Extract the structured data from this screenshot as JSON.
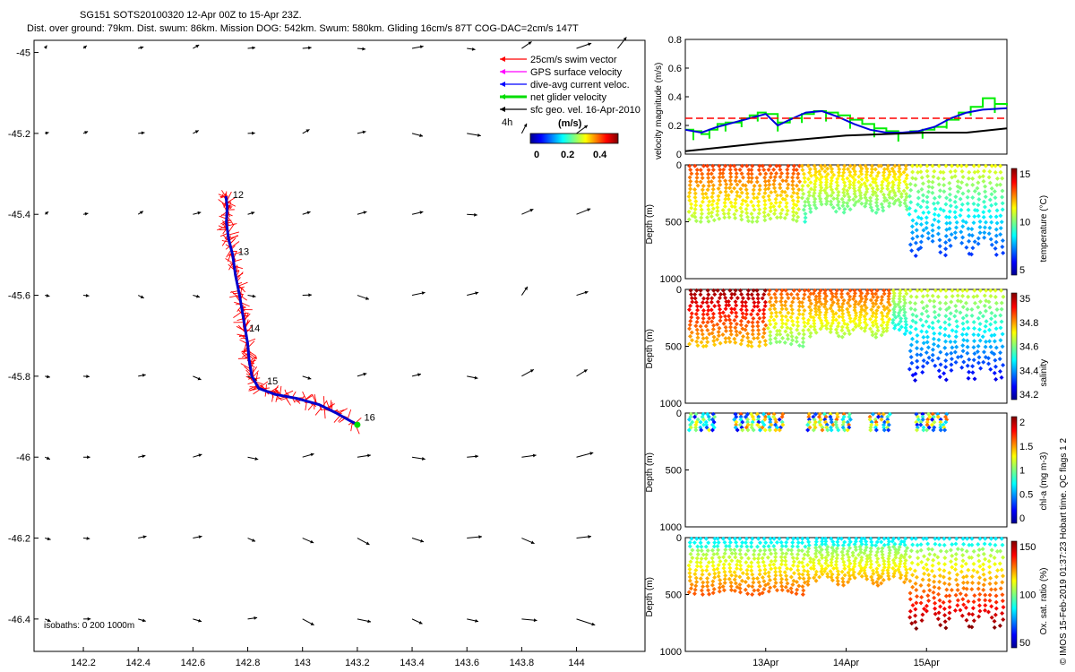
{
  "title": {
    "line1": "SG151 SOTS20100320 12-Apr 00Z to 15-Apr 23Z.",
    "line2": "Dist. over ground: 79km. Dist. swum: 86km. Mission DOG: 542km. Swum: 580km. Gliding 16cm/s 87T COG-DAC=2cm/s 147T"
  },
  "map": {
    "xticks": [
      "142.2",
      "142.4",
      "142.6",
      "142.8",
      "143",
      "143.2",
      "143.4",
      "143.6",
      "143.8",
      "144"
    ],
    "yticks": [
      "-45",
      "-45.2",
      "-45.4",
      "-45.6",
      "-45.8",
      "-46",
      "-46.2",
      "-46.4"
    ],
    "xlim": [
      142.02,
      144.25
    ],
    "ylim": [
      -46.48,
      -44.97
    ],
    "isobaths_label": "isobaths: 0   200  1000m",
    "day_labels": [
      {
        "text": "12",
        "lon": 142.745,
        "lat": -45.36
      },
      {
        "text": "13",
        "lon": 142.765,
        "lat": -45.5
      },
      {
        "text": "14",
        "lon": 142.805,
        "lat": -45.69
      },
      {
        "text": "15",
        "lon": 142.87,
        "lat": -45.82
      },
      {
        "text": "16",
        "lon": 143.225,
        "lat": -45.91
      }
    ],
    "track": [
      [
        142.72,
        -45.355
      ],
      [
        142.725,
        -45.38
      ],
      [
        142.722,
        -45.42
      ],
      [
        142.73,
        -45.46
      ],
      [
        142.745,
        -45.5
      ],
      [
        142.755,
        -45.55
      ],
      [
        142.77,
        -45.6
      ],
      [
        142.78,
        -45.64
      ],
      [
        142.79,
        -45.68
      ],
      [
        142.8,
        -45.72
      ],
      [
        142.805,
        -45.76
      ],
      [
        142.815,
        -45.8
      ],
      [
        142.84,
        -45.83
      ],
      [
        142.9,
        -45.845
      ],
      [
        142.98,
        -45.855
      ],
      [
        143.06,
        -45.87
      ],
      [
        143.12,
        -45.89
      ],
      [
        143.2,
        -45.92
      ]
    ],
    "legend": {
      "items": [
        {
          "label": "25cm/s swim vector",
          "color": "#ff0000"
        },
        {
          "label": "GPS surface velocity",
          "color": "#ff00ff"
        },
        {
          "label": "dive-avg current veloc.",
          "color": "#0000ff"
        },
        {
          "label": "net glider velocity",
          "color": "#00dd00"
        },
        {
          "label": "sfc geo. vel. 16-Apr-2010",
          "color": "#000000"
        }
      ],
      "prefix": "4h"
    },
    "colorbar": {
      "label": "(m/s)",
      "ticks": [
        "0",
        "0.2",
        "0.4"
      ]
    }
  },
  "velocity_panel": {
    "ylabel": "velocity magnitude (m/s)",
    "yticks": [
      "0",
      "0.2",
      "0.4",
      "0.6",
      "0.8"
    ],
    "ylim": [
      0,
      0.8
    ],
    "xlim": [
      0,
      4
    ],
    "reference_level": 0.25,
    "colors": {
      "net": "#00ee00",
      "current": "#0000dd",
      "reference": "#ff0000",
      "surface": "#000000"
    },
    "net_glider": [
      [
        0.0,
        0.17
      ],
      [
        0.1,
        0.16
      ],
      [
        0.2,
        0.14
      ],
      [
        0.3,
        0.17
      ],
      [
        0.4,
        0.21
      ],
      [
        0.5,
        0.22
      ],
      [
        0.6,
        0.22
      ],
      [
        0.7,
        0.25
      ],
      [
        0.8,
        0.27
      ],
      [
        0.9,
        0.29
      ],
      [
        1.0,
        0.28
      ],
      [
        1.15,
        0.22
      ],
      [
        1.3,
        0.25
      ],
      [
        1.45,
        0.28
      ],
      [
        1.6,
        0.3
      ],
      [
        1.75,
        0.29
      ],
      [
        1.9,
        0.27
      ],
      [
        2.05,
        0.24
      ],
      [
        2.2,
        0.21
      ],
      [
        2.35,
        0.18
      ],
      [
        2.5,
        0.16
      ],
      [
        2.65,
        0.15
      ],
      [
        2.8,
        0.16
      ],
      [
        2.95,
        0.17
      ],
      [
        3.1,
        0.19
      ],
      [
        3.25,
        0.24
      ],
      [
        3.4,
        0.29
      ],
      [
        3.55,
        0.33
      ],
      [
        3.7,
        0.39
      ],
      [
        3.85,
        0.35
      ],
      [
        4.0,
        0.34
      ]
    ],
    "current": [
      [
        0.0,
        0.17
      ],
      [
        0.2,
        0.15
      ],
      [
        0.4,
        0.19
      ],
      [
        0.6,
        0.22
      ],
      [
        0.8,
        0.25
      ],
      [
        1.0,
        0.28
      ],
      [
        1.15,
        0.2
      ],
      [
        1.3,
        0.24
      ],
      [
        1.5,
        0.29
      ],
      [
        1.7,
        0.3
      ],
      [
        1.9,
        0.26
      ],
      [
        2.1,
        0.21
      ],
      [
        2.3,
        0.17
      ],
      [
        2.5,
        0.15
      ],
      [
        2.7,
        0.15
      ],
      [
        2.9,
        0.16
      ],
      [
        3.1,
        0.19
      ],
      [
        3.3,
        0.25
      ],
      [
        3.5,
        0.29
      ],
      [
        3.7,
        0.31
      ],
      [
        4.0,
        0.32
      ]
    ],
    "surface": [
      [
        0.0,
        0.02
      ],
      [
        1.0,
        0.08
      ],
      [
        2.0,
        0.13
      ],
      [
        3.0,
        0.15
      ],
      [
        3.5,
        0.15
      ],
      [
        4.0,
        0.18
      ]
    ]
  },
  "profile_panels": [
    {
      "key": "temperature",
      "cblabel": "temperature (°C)",
      "cbticks": [
        "15",
        "10",
        "5"
      ],
      "yticks": [
        "0",
        "500",
        "1000"
      ],
      "ylabel": "Depth (m)",
      "type": "temp"
    },
    {
      "key": "salinity",
      "cblabel": "salinity",
      "cbticks": [
        "35",
        "34.8",
        "34.6",
        "34.4",
        "34.2"
      ],
      "yticks": [
        "0",
        "500",
        "1000"
      ],
      "ylabel": "Depth (m)",
      "type": "sal"
    },
    {
      "key": "chla",
      "cblabel": "chl-a (mg m-3)",
      "cbticks": [
        "2",
        "1.5",
        "1",
        "0.5",
        "0"
      ],
      "yticks": [
        "0",
        "500",
        "1000"
      ],
      "ylabel": "Depth (m)",
      "type": "chl"
    },
    {
      "key": "oxygen",
      "cblabel": "Ox. sat. ratio (%)",
      "cbticks": [
        "150",
        "100",
        "50"
      ],
      "yticks": [
        "0",
        "500",
        "1000"
      ],
      "ylabel": "Depth (m)",
      "type": "oxy"
    }
  ],
  "time_ticks": [
    "13Apr",
    "14Apr",
    "15Apr"
  ],
  "footer": "© IMOS 15-Feb-2019 01:37:23 Hobart time. QC flags 1  2"
}
